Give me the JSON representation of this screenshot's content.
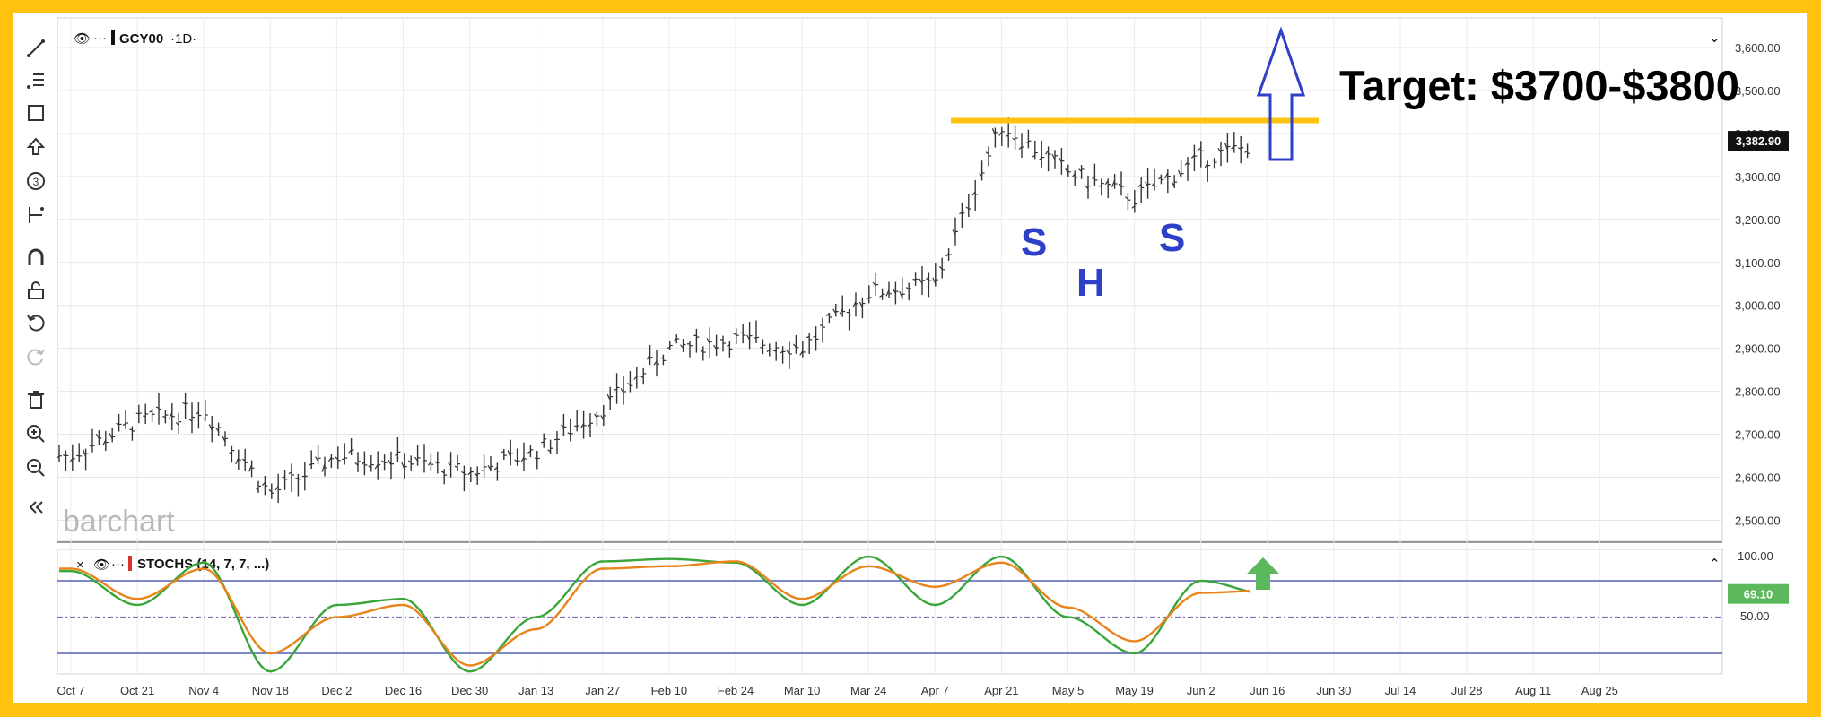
{
  "header": {
    "symbol": "GCY00",
    "interval": "·1D·",
    "indicator": "STOCHS (14, 7, 7, ...)"
  },
  "logo": "barchart",
  "annotations": {
    "target": "Target: $3700-$3800",
    "left_shoulder": "S",
    "head": "H",
    "right_shoulder": "S",
    "neckline_price": 3430,
    "line_color": "#ffc20e",
    "arrow_color": "#2f40c8",
    "stoch_arrow_color": "#5cb85c"
  },
  "price_axis": {
    "ticks": [
      "3,600.00",
      "3,500.00",
      "3,400.00",
      "3,300.00",
      "3,200.00",
      "3,100.00",
      "3,000.00",
      "2,900.00",
      "2,800.00",
      "2,700.00",
      "2,600.00",
      "2,500.00"
    ],
    "last_price": "3,382.90"
  },
  "stoch_axis": {
    "ticks": [
      "100.00",
      "50.00"
    ],
    "last_value": "69.10"
  },
  "date_axis": [
    "Oct 7",
    "Oct 21",
    "Nov 4",
    "Nov 18",
    "Dec 2",
    "Dec 16",
    "Dec 30",
    "Jan 13",
    "Jan 27",
    "Feb 10",
    "Feb 24",
    "Mar 10",
    "Mar 24",
    "Apr 7",
    "Apr 21",
    "May 5",
    "May 19",
    "Jun 2",
    "Jun 16",
    "Jun 30",
    "Jul 14",
    "Jul 28",
    "Aug 11",
    "Aug 25"
  ],
  "toolbar": [
    "trend-line-icon",
    "fib-icon",
    "rectangle-icon",
    "arrow-up-icon",
    "count-icon",
    "measure-icon",
    "magnet-icon",
    "lock-icon",
    "undo-icon",
    "redo-icon",
    "trash-icon",
    "zoom-in-icon",
    "zoom-out-icon",
    "collapse-icon"
  ],
  "chart_data": [
    {
      "type": "line",
      "title": "GCY00 ·1D·",
      "ylim": [
        2440,
        3640
      ],
      "x": [
        "Oct 7",
        "Oct 21",
        "Nov 4",
        "Nov 18",
        "Dec 2",
        "Dec 16",
        "Dec 30",
        "Jan 13",
        "Jan 27",
        "Feb 10",
        "Feb 24",
        "Mar 10",
        "Mar 24",
        "Apr 7",
        "Apr 21",
        "May 5",
        "May 19",
        "Jun 2",
        "Jun 16"
      ],
      "series": [
        {
          "values": [
            2650,
            2730,
            2760,
            2560,
            2650,
            2640,
            2610,
            2660,
            2760,
            2900,
            2920,
            2900,
            3030,
            3050,
            3420,
            3310,
            3250,
            3340,
            3383
          ]
        }
      ]
    },
    {
      "type": "line",
      "title": "STOCHS (14, 7, 7, ...)",
      "ylim": [
        0,
        110
      ],
      "x": [
        "Oct 7",
        "Oct 21",
        "Nov 4",
        "Nov 18",
        "Dec 2",
        "Dec 16",
        "Dec 30",
        "Jan 13",
        "Jan 27",
        "Feb 10",
        "Feb 24",
        "Mar 10",
        "Mar 24",
        "Apr 7",
        "Apr 21",
        "May 5",
        "May 19",
        "Jun 2",
        "Jun 16"
      ],
      "series": [
        {
          "color": "#3aa53a",
          "values": [
            88,
            60,
            95,
            5,
            60,
            65,
            5,
            50,
            96,
            98,
            95,
            60,
            100,
            60,
            100,
            50,
            20,
            80,
            69
          ]
        },
        {
          "color": "#e8841a",
          "values": [
            90,
            65,
            90,
            20,
            50,
            60,
            10,
            40,
            90,
            92,
            96,
            65,
            92,
            75,
            95,
            58,
            30,
            70,
            72
          ]
        }
      ]
    }
  ]
}
